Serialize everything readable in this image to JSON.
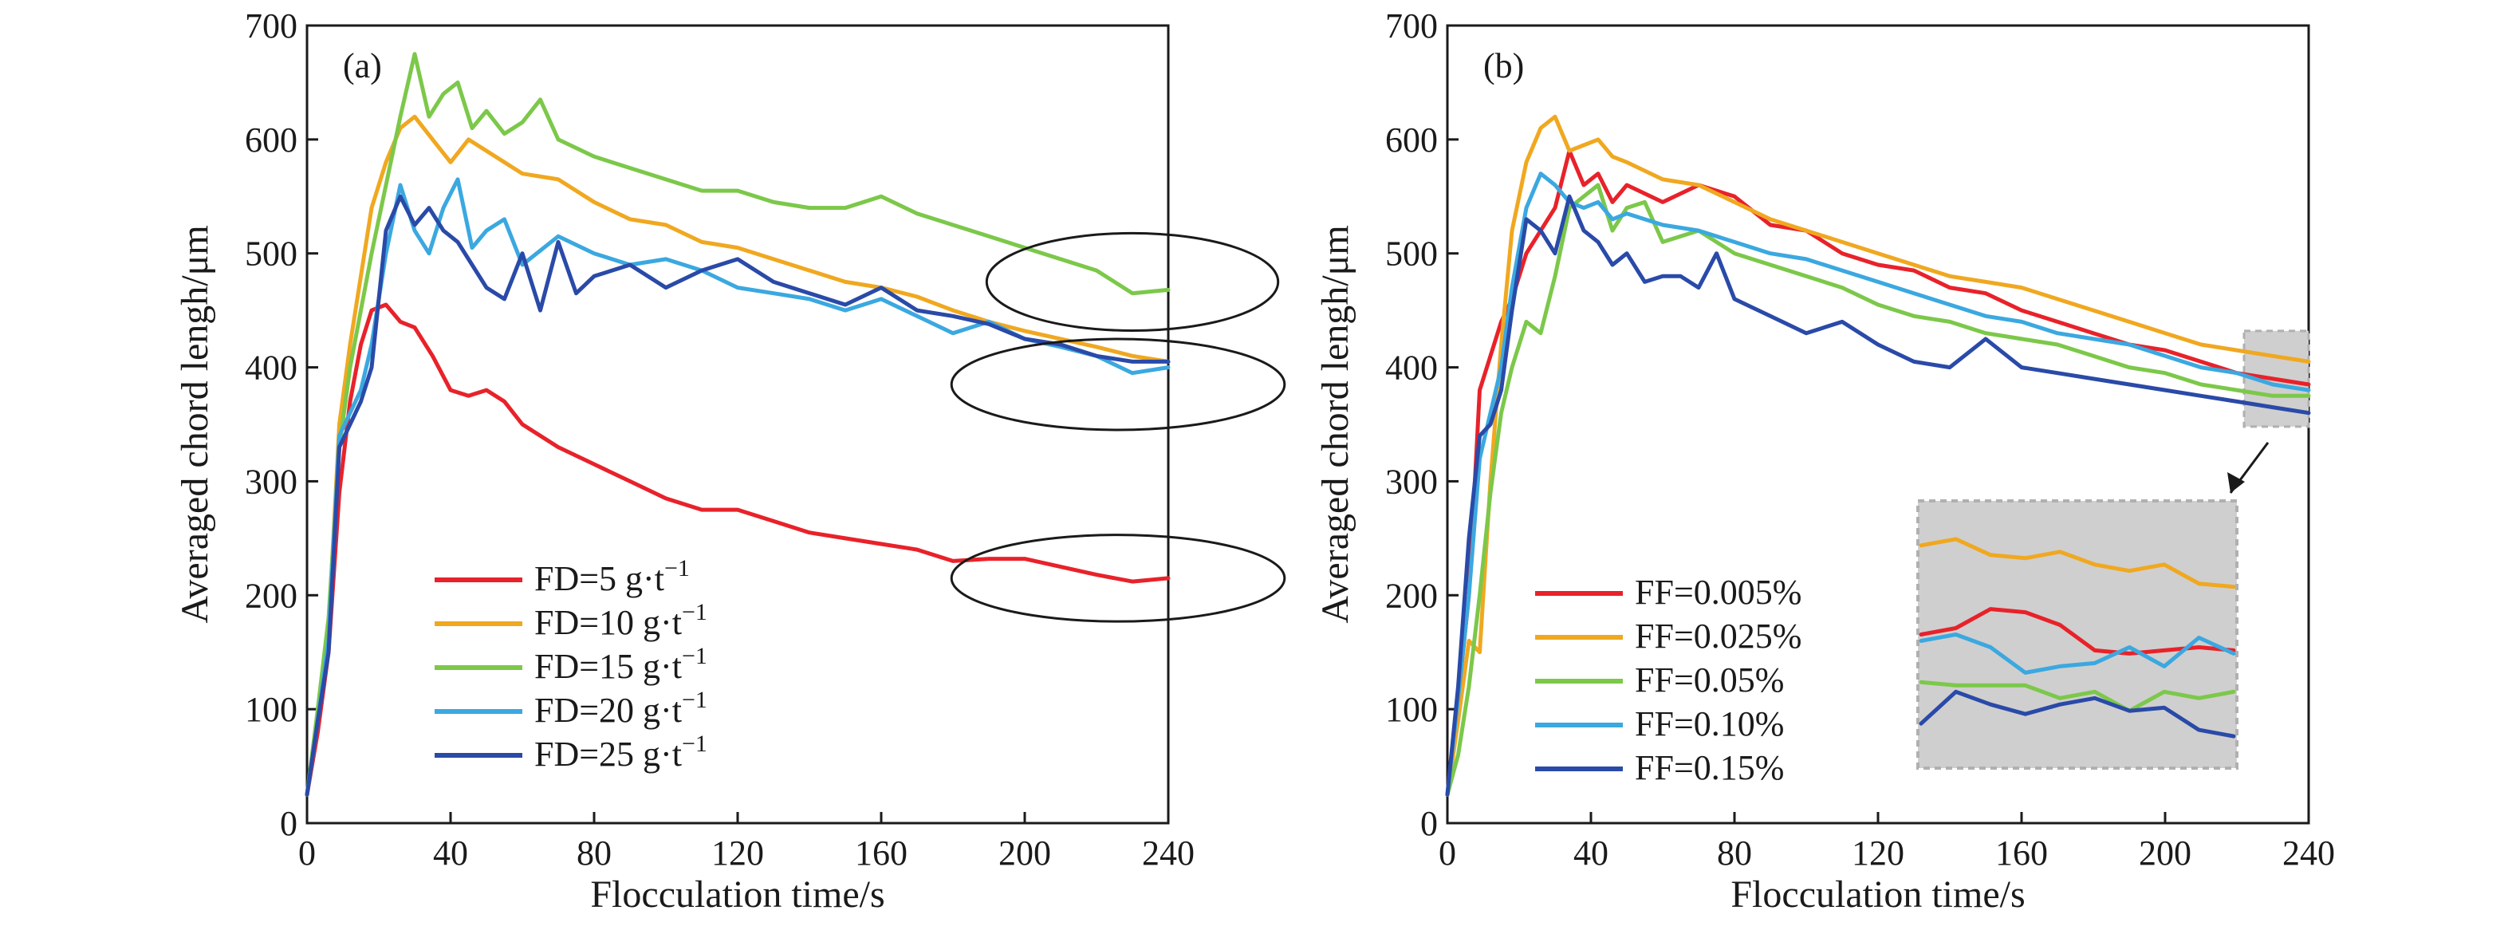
{
  "chart_data": [
    {
      "type": "line",
      "panel_label": "(a)",
      "xlabel": "Flocculation time/s",
      "ylabel": "Averaged chord lengh/μm",
      "xlim": [
        0,
        240
      ],
      "ylim": [
        0,
        700
      ],
      "xticks": [
        0,
        40,
        80,
        120,
        160,
        200,
        240
      ],
      "yticks": [
        0,
        100,
        200,
        300,
        400,
        500,
        600,
        700
      ],
      "grid": false,
      "legend_position": "bottom-center",
      "series": [
        {
          "name": "FD=5 g·t",
          "name_sup": "−1",
          "color": "#e8222a",
          "x": [
            0,
            3,
            6,
            9,
            12,
            15,
            18,
            22,
            26,
            30,
            35,
            40,
            45,
            50,
            55,
            60,
            70,
            80,
            90,
            100,
            110,
            120,
            130,
            140,
            150,
            160,
            170,
            180,
            190,
            200,
            210,
            220,
            230,
            240
          ],
          "y": [
            25,
            80,
            150,
            290,
            370,
            420,
            450,
            455,
            440,
            435,
            410,
            380,
            375,
            380,
            370,
            350,
            330,
            315,
            300,
            285,
            275,
            275,
            265,
            255,
            250,
            245,
            240,
            230,
            232,
            232,
            225,
            218,
            212,
            215
          ]
        },
        {
          "name": "FD=10 g·t",
          "name_sup": "−1",
          "color": "#f0a820",
          "x": [
            0,
            3,
            6,
            9,
            12,
            15,
            18,
            22,
            26,
            30,
            35,
            40,
            45,
            50,
            60,
            70,
            80,
            90,
            100,
            110,
            120,
            130,
            140,
            150,
            160,
            170,
            180,
            190,
            200,
            210,
            220,
            230,
            240
          ],
          "y": [
            25,
            90,
            170,
            350,
            420,
            480,
            540,
            580,
            610,
            620,
            600,
            580,
            600,
            590,
            570,
            565,
            545,
            530,
            525,
            510,
            505,
            495,
            485,
            475,
            470,
            462,
            450,
            440,
            432,
            425,
            418,
            410,
            405
          ]
        },
        {
          "name": "FD=15 g·t",
          "name_sup": "−1",
          "color": "#7cc84a",
          "x": [
            0,
            3,
            6,
            9,
            12,
            15,
            18,
            22,
            26,
            30,
            34,
            38,
            42,
            46,
            50,
            55,
            60,
            65,
            70,
            80,
            90,
            100,
            110,
            120,
            130,
            140,
            150,
            160,
            170,
            180,
            190,
            200,
            210,
            220,
            230,
            240
          ],
          "y": [
            25,
            100,
            180,
            330,
            400,
            450,
            500,
            560,
            620,
            675,
            620,
            640,
            650,
            610,
            625,
            605,
            615,
            635,
            600,
            585,
            575,
            565,
            555,
            555,
            545,
            540,
            540,
            550,
            535,
            525,
            515,
            505,
            495,
            485,
            465,
            468
          ]
        },
        {
          "name": "FD=20 g·t",
          "name_sup": "−1",
          "color": "#3ba8e0",
          "x": [
            0,
            3,
            6,
            9,
            12,
            15,
            18,
            22,
            26,
            30,
            34,
            38,
            42,
            46,
            50,
            55,
            60,
            70,
            80,
            90,
            100,
            110,
            120,
            130,
            140,
            150,
            160,
            170,
            180,
            190,
            200,
            210,
            220,
            230,
            240
          ],
          "y": [
            25,
            90,
            160,
            340,
            360,
            380,
            420,
            500,
            560,
            520,
            500,
            540,
            565,
            505,
            520,
            530,
            490,
            515,
            500,
            490,
            495,
            485,
            470,
            465,
            460,
            450,
            460,
            445,
            430,
            440,
            425,
            418,
            410,
            395,
            400
          ]
        },
        {
          "name": "FD=25 g·t",
          "name_sup": "−1",
          "color": "#2a4aa8",
          "x": [
            0,
            3,
            6,
            9,
            12,
            15,
            18,
            22,
            26,
            30,
            34,
            38,
            42,
            46,
            50,
            55,
            60,
            65,
            70,
            75,
            80,
            90,
            100,
            110,
            120,
            130,
            140,
            150,
            160,
            170,
            180,
            190,
            200,
            210,
            220,
            230,
            240
          ],
          "y": [
            25,
            90,
            150,
            330,
            350,
            370,
            400,
            520,
            550,
            525,
            540,
            520,
            510,
            490,
            470,
            460,
            500,
            450,
            510,
            465,
            480,
            490,
            470,
            485,
            495,
            475,
            465,
            455,
            470,
            450,
            445,
            438,
            425,
            420,
            410,
            405,
            405
          ]
        }
      ],
      "annotations": [
        {
          "shape": "ellipse",
          "cx": 230,
          "cy": 475,
          "rx": 14,
          "ry": 45
        },
        {
          "shape": "ellipse",
          "cx": 226,
          "cy": 385,
          "rx": 16,
          "ry": 42
        },
        {
          "shape": "ellipse",
          "cx": 226,
          "cy": 215,
          "rx": 16,
          "ry": 40
        }
      ]
    },
    {
      "type": "line",
      "panel_label": "(b)",
      "xlabel": "Flocculation time/s",
      "ylabel": "Averaged chord lengh/μm",
      "xlim": [
        0,
        240
      ],
      "ylim": [
        0,
        700
      ],
      "xticks": [
        0,
        40,
        80,
        120,
        160,
        200,
        240
      ],
      "yticks": [
        0,
        100,
        200,
        300,
        400,
        500,
        600,
        700
      ],
      "grid": false,
      "legend_position": "bottom-left",
      "series": [
        {
          "name": "FF=0.005%",
          "color": "#e8222a",
          "x": [
            0,
            3,
            6,
            9,
            12,
            15,
            18,
            22,
            26,
            30,
            34,
            38,
            42,
            46,
            50,
            60,
            70,
            80,
            90,
            100,
            110,
            120,
            130,
            140,
            150,
            160,
            170,
            180,
            190,
            200,
            210,
            220,
            230,
            240
          ],
          "y": [
            25,
            110,
            200,
            380,
            410,
            440,
            460,
            500,
            520,
            540,
            590,
            560,
            570,
            545,
            560,
            545,
            560,
            550,
            525,
            520,
            500,
            490,
            485,
            470,
            465,
            450,
            440,
            430,
            420,
            415,
            405,
            395,
            390,
            385
          ]
        },
        {
          "name": "FF=0.025%",
          "color": "#f0a820",
          "x": [
            0,
            3,
            6,
            9,
            12,
            15,
            18,
            22,
            26,
            30,
            34,
            38,
            42,
            46,
            50,
            60,
            70,
            80,
            90,
            100,
            110,
            120,
            130,
            140,
            150,
            160,
            170,
            180,
            190,
            200,
            210,
            220,
            230,
            240
          ],
          "y": [
            25,
            90,
            160,
            150,
            300,
            420,
            520,
            580,
            610,
            620,
            590,
            595,
            600,
            585,
            580,
            565,
            560,
            545,
            530,
            520,
            510,
            500,
            490,
            480,
            475,
            470,
            460,
            450,
            440,
            430,
            420,
            415,
            410,
            405
          ]
        },
        {
          "name": "FF=0.05%",
          "color": "#7cc84a",
          "x": [
            0,
            3,
            6,
            9,
            12,
            15,
            18,
            22,
            26,
            30,
            34,
            38,
            42,
            46,
            50,
            55,
            60,
            70,
            80,
            90,
            100,
            110,
            120,
            130,
            140,
            150,
            160,
            170,
            180,
            190,
            200,
            210,
            220,
            230,
            240
          ],
          "y": [
            25,
            60,
            120,
            200,
            290,
            360,
            400,
            440,
            430,
            480,
            540,
            550,
            560,
            520,
            540,
            545,
            510,
            520,
            500,
            490,
            480,
            470,
            455,
            445,
            440,
            430,
            425,
            420,
            410,
            400,
            395,
            385,
            380,
            375,
            375
          ]
        },
        {
          "name": "FF=0.10%",
          "color": "#3ba8e0",
          "x": [
            0,
            3,
            6,
            9,
            12,
            15,
            18,
            22,
            26,
            30,
            34,
            38,
            42,
            46,
            50,
            60,
            70,
            80,
            90,
            100,
            110,
            120,
            130,
            140,
            150,
            160,
            170,
            180,
            190,
            200,
            210,
            220,
            230,
            240
          ],
          "y": [
            25,
            110,
            200,
            320,
            360,
            400,
            470,
            540,
            570,
            560,
            545,
            540,
            545,
            530,
            535,
            525,
            520,
            510,
            500,
            495,
            485,
            475,
            465,
            455,
            445,
            440,
            430,
            425,
            420,
            410,
            400,
            395,
            385,
            380
          ]
        },
        {
          "name": "FF=0.15%",
          "color": "#2a4aa8",
          "x": [
            0,
            3,
            6,
            9,
            12,
            15,
            18,
            22,
            26,
            30,
            34,
            38,
            42,
            46,
            50,
            55,
            60,
            65,
            70,
            75,
            80,
            90,
            100,
            110,
            120,
            130,
            140,
            150,
            160,
            170,
            180,
            190,
            200,
            210,
            220,
            230,
            240
          ],
          "y": [
            25,
            120,
            250,
            340,
            350,
            380,
            450,
            530,
            520,
            500,
            550,
            520,
            510,
            490,
            500,
            475,
            480,
            480,
            470,
            500,
            460,
            445,
            430,
            440,
            420,
            405,
            400,
            425,
            400,
            395,
            390,
            385,
            380,
            375,
            370,
            365,
            360
          ]
        }
      ],
      "inset": {
        "source_xlim": [
          222,
          240
        ],
        "source_ylim": [
          348,
          432
        ],
        "series_y": [
          {
            "color": "#e8222a",
            "values": [
              390,
              392,
              398,
              397,
              393,
              385,
              384,
              385,
              386,
              385
            ]
          },
          {
            "color": "#f0a820",
            "values": [
              418,
              420,
              415,
              414,
              416,
              412,
              410,
              412,
              406,
              405
            ]
          },
          {
            "color": "#7cc84a",
            "values": [
              375,
              374,
              374,
              374,
              370,
              372,
              366,
              372,
              370,
              372
            ]
          },
          {
            "color": "#3ba8e0",
            "values": [
              388,
              390,
              386,
              378,
              380,
              381,
              386,
              380,
              389,
              384
            ]
          },
          {
            "color": "#2a4aa8",
            "values": [
              362,
              372,
              368,
              365,
              368,
              370,
              366,
              367,
              360,
              358
            ]
          }
        ]
      }
    }
  ]
}
